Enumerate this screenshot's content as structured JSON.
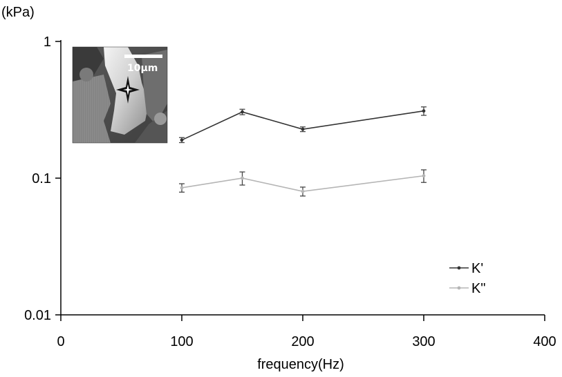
{
  "chart_data": {
    "type": "line",
    "y_unit_label": "(kPa)",
    "xlabel": "frequency(Hz)",
    "ylabel": "",
    "xlim": [
      0,
      400
    ],
    "ylim": [
      0.01,
      1
    ],
    "y_scale": "log",
    "grid": false,
    "x_ticks": [
      {
        "value": 0,
        "label": "0"
      },
      {
        "value": 100,
        "label": "100"
      },
      {
        "value": 200,
        "label": "200"
      },
      {
        "value": 300,
        "label": "300"
      },
      {
        "value": 400,
        "label": "400"
      }
    ],
    "y_ticks": [
      {
        "value": 0.01,
        "label": "0.01"
      },
      {
        "value": 0.1,
        "label": "0.1"
      },
      {
        "value": 1,
        "label": "1"
      }
    ],
    "legend_position": "bottom-right",
    "series": [
      {
        "name": "K'",
        "color": "#333333",
        "x": [
          100,
          150,
          200,
          300
        ],
        "y": [
          0.19,
          0.305,
          0.228,
          0.31
        ],
        "error": [
          0.008,
          0.014,
          0.009,
          0.022
        ]
      },
      {
        "name": "K\"",
        "color": "#b5b5b5",
        "x": [
          100,
          150,
          200,
          300
        ],
        "y": [
          0.085,
          0.1,
          0.08,
          0.104
        ],
        "error": [
          0.006,
          0.011,
          0.006,
          0.011
        ]
      }
    ],
    "inset": {
      "description_icon": "cell-micrograph-image",
      "scale_bar_label": "10μm",
      "marker_icon": "star-marker-icon"
    }
  }
}
